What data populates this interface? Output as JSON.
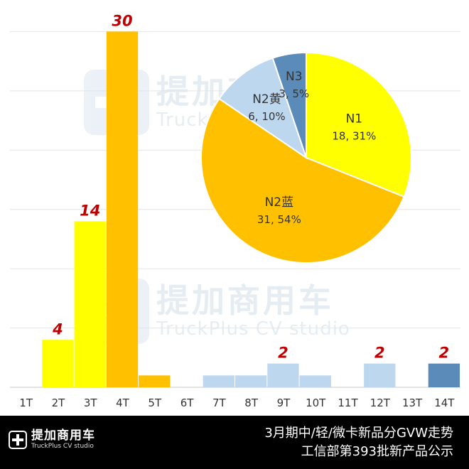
{
  "watermark": {
    "brand_cn": "提加商用车",
    "brand_en": "TruckPlus CV studio",
    "logo_icon": "truckplus-cross-icon"
  },
  "footer": {
    "brand_cn": "提加商用车",
    "brand_en": "TruckPlus CV studio",
    "line1": "3月期中/轻/微卡新品分GVW走势",
    "line2": "工信部第393批新产品公示"
  },
  "chart_data": [
    {
      "type": "bar",
      "categories": [
        "1T",
        "2T",
        "3T",
        "4T",
        "5T",
        "6T",
        "7T",
        "8T",
        "9T",
        "10T",
        "11T",
        "12T",
        "13T",
        "14T"
      ],
      "values": [
        0,
        4,
        14,
        30,
        1,
        0,
        1,
        1,
        2,
        1,
        0,
        2,
        0,
        2
      ],
      "data_labels": [
        "",
        "4",
        "14",
        "30",
        "",
        "",
        "",
        "",
        "2",
        "",
        "",
        "2",
        "",
        "2"
      ],
      "colors": [
        "#ffff00",
        "#ffff00",
        "#ffff00",
        "#ffc000",
        "#ffc000",
        "#ffc000",
        "#bdd7ee",
        "#bdd7ee",
        "#bdd7ee",
        "#bdd7ee",
        "#bdd7ee",
        "#bdd7ee",
        "#5b8bb8",
        "#5b8bb8"
      ],
      "ylim": [
        0,
        32
      ],
      "grid": true,
      "label_color": "#c00000"
    },
    {
      "type": "pie",
      "slices": [
        {
          "name": "N1",
          "value": 18,
          "percent": "31%",
          "label": "18, 31%",
          "color": "#ffff00"
        },
        {
          "name": "N2蓝",
          "value": 31,
          "percent": "54%",
          "label": "31, 54%",
          "color": "#ffc000"
        },
        {
          "name": "N2黄",
          "value": 6,
          "percent": "10%",
          "label": "6, 10%",
          "color": "#bdd7ee"
        },
        {
          "name": "N3",
          "value": 3,
          "percent": "5%",
          "label": "3, 5%",
          "color": "#5b8bb8"
        }
      ]
    }
  ]
}
